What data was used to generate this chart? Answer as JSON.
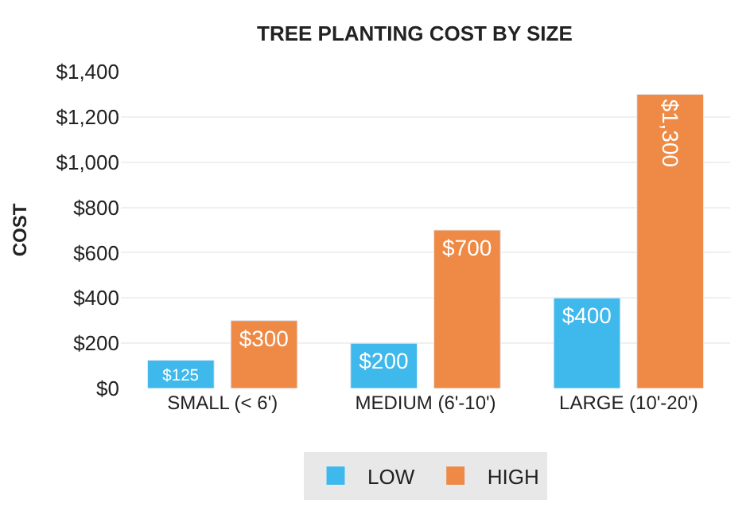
{
  "chart_data": {
    "type": "bar",
    "title": "TREE PLANTING COST BY SIZE",
    "ylabel": "COST",
    "categories": [
      "SMALL (< 6')",
      "MEDIUM (6'-10')",
      "LARGE (10'-20')"
    ],
    "series": [
      {
        "name": "LOW",
        "color": "#3fb8ec",
        "values": [
          125,
          200,
          400
        ],
        "value_labels": [
          "$125",
          "$200",
          "$400"
        ]
      },
      {
        "name": "HIGH",
        "color": "#ee8a45",
        "values": [
          300,
          700,
          1300
        ],
        "value_labels": [
          "$300",
          "$700",
          "$1,300"
        ]
      }
    ],
    "ylim": [
      0,
      1400
    ],
    "yticks": [
      {
        "value": 0,
        "label": "$0"
      },
      {
        "value": 200,
        "label": "$200"
      },
      {
        "value": 400,
        "label": "$400"
      },
      {
        "value": 600,
        "label": "$600"
      },
      {
        "value": 800,
        "label": "$800"
      },
      {
        "value": 1000,
        "label": "$1,000"
      },
      {
        "value": 1200,
        "label": "$1,200"
      },
      {
        "value": 1400,
        "label": "$1,400"
      }
    ],
    "grid": "y",
    "legend": "bottom"
  }
}
